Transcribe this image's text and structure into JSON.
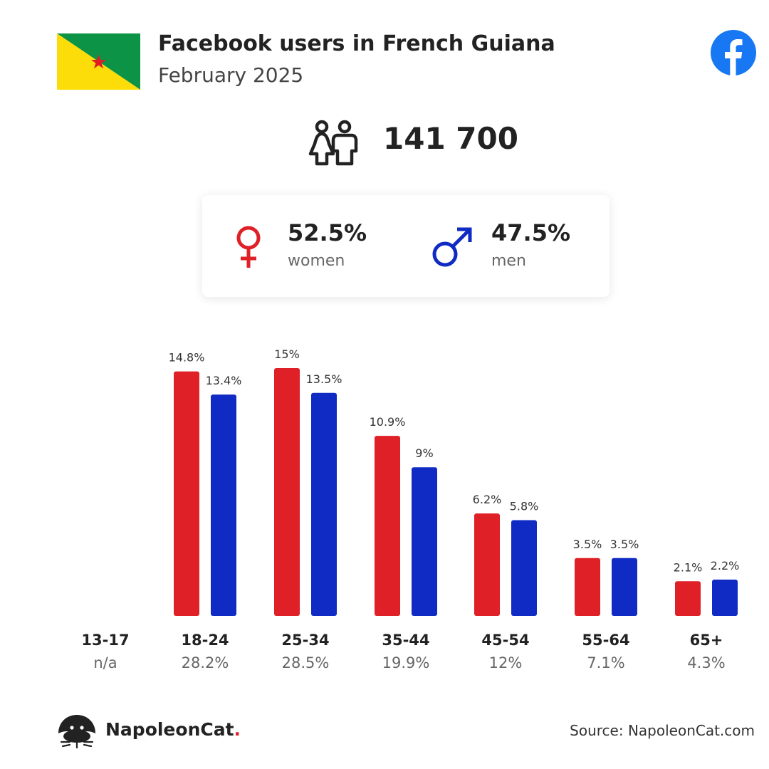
{
  "header": {
    "title": "Facebook users in French Guiana",
    "subtitle": "February 2025"
  },
  "total": {
    "value": "141 700"
  },
  "gender": {
    "women": {
      "pct": "52.5%",
      "label": "women"
    },
    "men": {
      "pct": "47.5%",
      "label": "men"
    }
  },
  "colors": {
    "women": "#df2027",
    "men": "#0f2bc3",
    "facebook": "#1877f2",
    "flag_green": "#0d9346",
    "flag_yellow": "#fcdd09",
    "flag_star": "#e11b22"
  },
  "chart_data": {
    "type": "bar",
    "categories": [
      "13-17",
      "18-24",
      "25-34",
      "35-44",
      "45-54",
      "55-64",
      "65+"
    ],
    "category_totals": [
      "n/a",
      "28.2%",
      "28.5%",
      "19.9%",
      "12%",
      "7.1%",
      "4.3%"
    ],
    "series": [
      {
        "values": [
          null,
          14.8,
          15,
          10.9,
          6.2,
          3.5,
          2.1
        ],
        "labels": [
          "",
          "14.8%",
          "15%",
          "10.9%",
          "6.2%",
          "3.5%",
          "2.1%"
        ]
      },
      {
        "values": [
          null,
          13.4,
          13.5,
          9,
          5.8,
          3.5,
          2.2
        ],
        "labels": [
          "",
          "13.4%",
          "13.5%",
          "9%",
          "5.8%",
          "3.5%",
          "2.2%"
        ]
      }
    ],
    "ylim": [
      0,
      15
    ],
    "grid": false
  },
  "footer": {
    "brand": "NapoleonCat",
    "brand_dot": ".",
    "source": "Source: NapoleonCat.com"
  }
}
